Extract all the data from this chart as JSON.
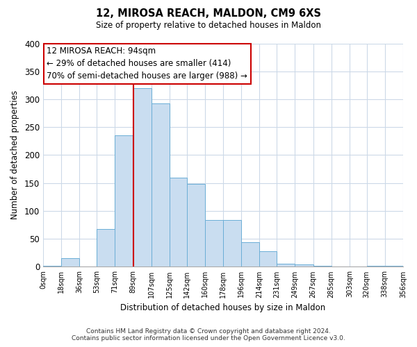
{
  "title": "12, MIROSA REACH, MALDON, CM9 6XS",
  "subtitle": "Size of property relative to detached houses in Maldon",
  "xlabel": "Distribution of detached houses by size in Maldon",
  "ylabel": "Number of detached properties",
  "bar_edges": [
    0,
    18,
    36,
    53,
    71,
    89,
    107,
    125,
    142,
    160,
    178,
    196,
    214,
    231,
    249,
    267,
    285,
    303,
    320,
    338,
    356
  ],
  "bar_heights": [
    2,
    15,
    0,
    68,
    235,
    320,
    293,
    160,
    148,
    84,
    84,
    44,
    28,
    6,
    4,
    2,
    0,
    0,
    2,
    2
  ],
  "bar_color": "#c9ddf0",
  "bar_edgecolor": "#6baed6",
  "tick_labels": [
    "0sqm",
    "18sqm",
    "36sqm",
    "53sqm",
    "71sqm",
    "89sqm",
    "107sqm",
    "125sqm",
    "142sqm",
    "160sqm",
    "178sqm",
    "196sqm",
    "214sqm",
    "231sqm",
    "249sqm",
    "267sqm",
    "285sqm",
    "303sqm",
    "320sqm",
    "338sqm",
    "356sqm"
  ],
  "vline_x": 89,
  "vline_color": "#cc0000",
  "annotation_title": "12 MIROSA REACH: 94sqm",
  "annotation_line1": "← 29% of detached houses are smaller (414)",
  "annotation_line2": "70% of semi-detached houses are larger (988) →",
  "annotation_box_color": "#ffffff",
  "annotation_box_edgecolor": "#cc0000",
  "ylim": [
    0,
    400
  ],
  "yticks": [
    0,
    50,
    100,
    150,
    200,
    250,
    300,
    350,
    400
  ],
  "footer1": "Contains HM Land Registry data © Crown copyright and database right 2024.",
  "footer2": "Contains public sector information licensed under the Open Government Licence v3.0.",
  "background_color": "#ffffff",
  "grid_color": "#ccd9e8"
}
